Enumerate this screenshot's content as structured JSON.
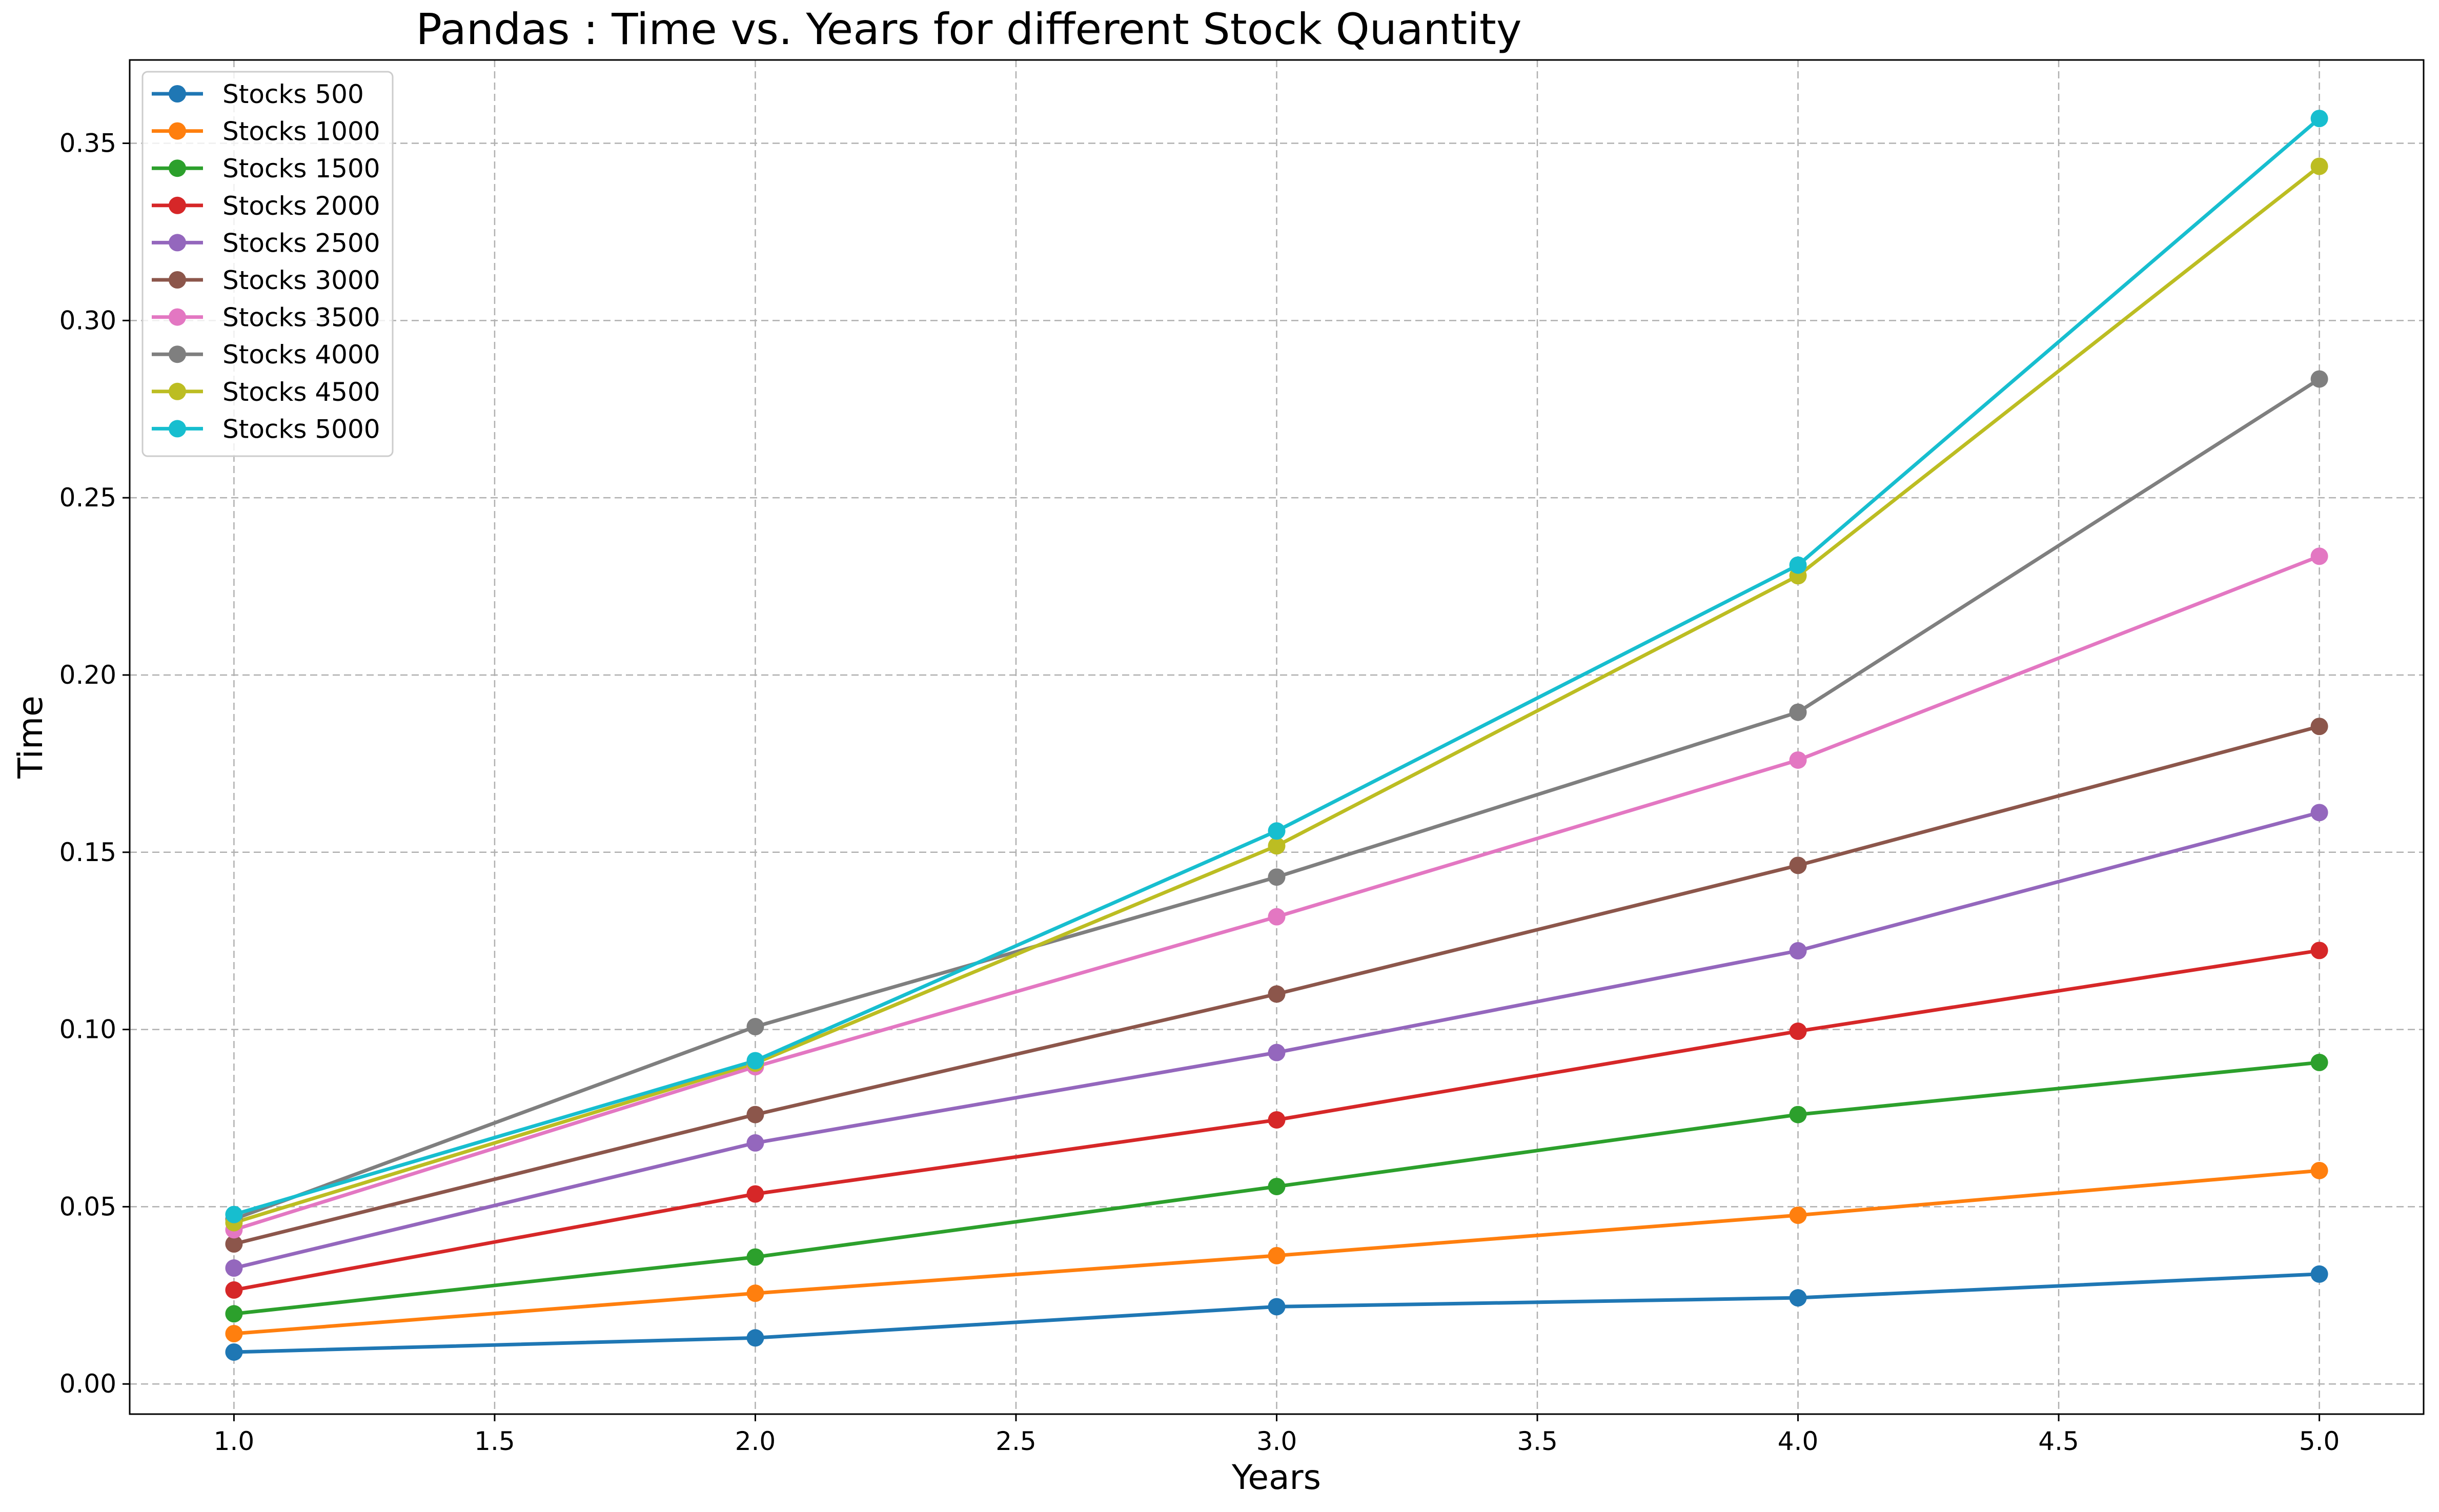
{
  "chart_data": {
    "type": "line",
    "title": "Pandas : Time vs. Years for different Stock Quantity",
    "xlabel": "Years",
    "ylabel": "Time",
    "x": [
      1.0,
      2.0,
      3.0,
      4.0,
      5.0
    ],
    "xlim": [
      0.8,
      5.2
    ],
    "ylim": [
      -0.0085,
      0.3735
    ],
    "xticks": [
      "1.0",
      "1.5",
      "2.0",
      "2.5",
      "3.0",
      "3.5",
      "4.0",
      "4.5",
      "5.0"
    ],
    "yticks": [
      "0.00",
      "0.05",
      "0.10",
      "0.15",
      "0.20",
      "0.25",
      "0.30",
      "0.35"
    ],
    "grid": true,
    "legend_position": "upper-left",
    "series": [
      {
        "name": "Stocks 500",
        "color": "#1f77b4",
        "values": [
          0.009,
          0.013,
          0.0218,
          0.0243,
          0.031
        ]
      },
      {
        "name": "Stocks 1000",
        "color": "#ff7f0e",
        "values": [
          0.0142,
          0.0256,
          0.0362,
          0.0476,
          0.0602
        ]
      },
      {
        "name": "Stocks 1500",
        "color": "#2ca02c",
        "values": [
          0.0198,
          0.0358,
          0.0557,
          0.076,
          0.0907
        ]
      },
      {
        "name": "Stocks 2000",
        "color": "#d62728",
        "values": [
          0.0265,
          0.0536,
          0.0745,
          0.0995,
          0.1223
        ]
      },
      {
        "name": "Stocks 2500",
        "color": "#9467bd",
        "values": [
          0.0327,
          0.068,
          0.0935,
          0.1222,
          0.1612
        ]
      },
      {
        "name": "Stocks 3000",
        "color": "#8c564b",
        "values": [
          0.0395,
          0.076,
          0.11,
          0.1463,
          0.1855
        ]
      },
      {
        "name": "Stocks 3500",
        "color": "#e377c2",
        "values": [
          0.0435,
          0.0895,
          0.1318,
          0.176,
          0.2335
        ]
      },
      {
        "name": "Stocks 4000",
        "color": "#7f7f7f",
        "values": [
          0.0465,
          0.1008,
          0.143,
          0.1895,
          0.2835
        ]
      },
      {
        "name": "Stocks 4500",
        "color": "#bcbd22",
        "values": [
          0.0455,
          0.0905,
          0.1518,
          0.228,
          0.3435
        ]
      },
      {
        "name": "Stocks 5000",
        "color": "#17becf",
        "values": [
          0.0478,
          0.0912,
          0.156,
          0.231,
          0.357
        ]
      }
    ]
  }
}
